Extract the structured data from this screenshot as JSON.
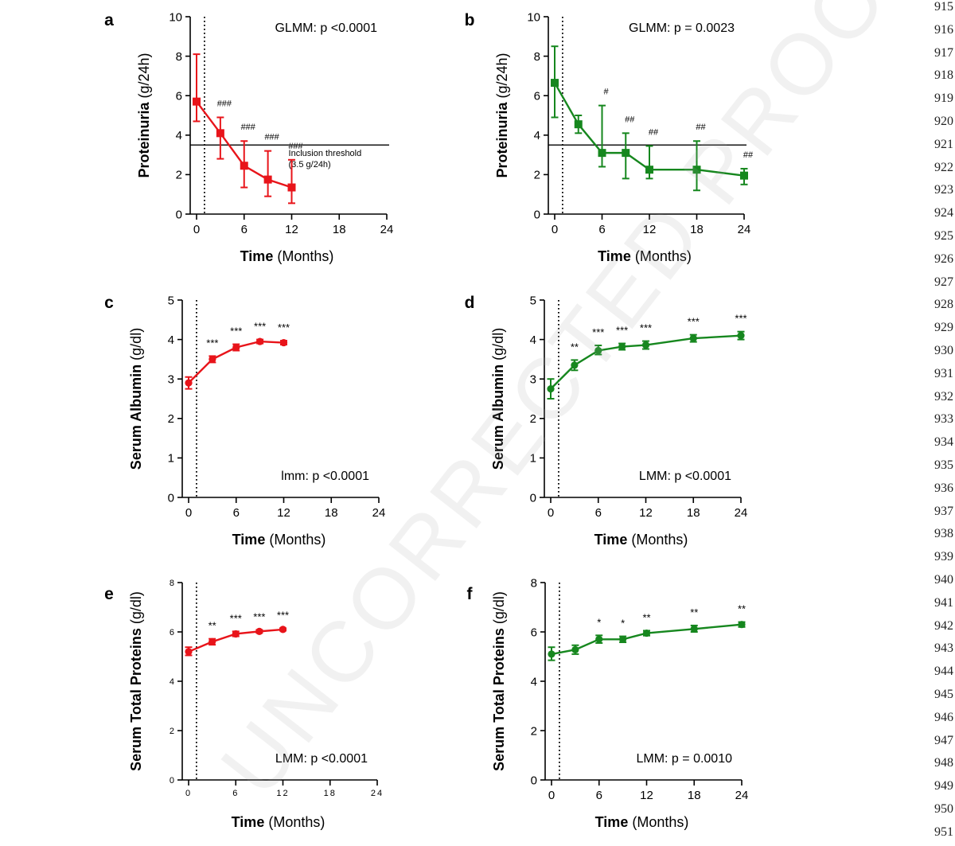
{
  "watermark": "UNCORRECTED PROOF",
  "line_numbers": [
    "915",
    "916",
    "917",
    "918",
    "919",
    "920",
    "921",
    "922",
    "923",
    "924",
    "925",
    "926",
    "927",
    "928",
    "929",
    "930",
    "931",
    "932",
    "933",
    "934",
    "935",
    "936",
    "937",
    "938",
    "939",
    "940",
    "941",
    "942",
    "943",
    "944",
    "945",
    "946",
    "947",
    "948",
    "949",
    "950",
    "951"
  ],
  "colors": {
    "red": "#e8141a",
    "green": "#16871e",
    "axis": "#000000"
  },
  "chart_data": [
    {
      "panel": "a",
      "type": "line",
      "color": "red",
      "marker": "square",
      "stat": "GLMM: p <0.0001",
      "ylabel_bold": "Proteinuria",
      "ylabel_rest": " (g/24h)",
      "xlabel_bold": "Time",
      "xlabel_rest": " (Months)",
      "xlim": [
        0,
        24
      ],
      "xticks": [
        "0",
        "6",
        "12",
        "18",
        "24"
      ],
      "ylim": [
        0,
        10
      ],
      "yticks": [
        "0",
        "2",
        "4",
        "6",
        "8",
        "10"
      ],
      "vline_x": 1,
      "hline": {
        "y": 3.5,
        "label1": "Inclusion threshold",
        "label2": "(3.5 g/24h)"
      },
      "points": [
        {
          "x": 0,
          "y": 5.7,
          "lo": 4.7,
          "hi": 8.1,
          "sig": ""
        },
        {
          "x": 3,
          "y": 4.1,
          "lo": 2.8,
          "hi": 4.9,
          "sig": "###"
        },
        {
          "x": 6,
          "y": 2.45,
          "lo": 1.35,
          "hi": 3.7,
          "sig": "###"
        },
        {
          "x": 9,
          "y": 1.75,
          "lo": 0.9,
          "hi": 3.2,
          "sig": "###"
        },
        {
          "x": 12,
          "y": 1.35,
          "lo": 0.55,
          "hi": 2.75,
          "sig": "###"
        }
      ]
    },
    {
      "panel": "b",
      "type": "line",
      "color": "green",
      "marker": "square",
      "stat": "GLMM: p = 0.0023",
      "ylabel_bold": "Proteinuria",
      "ylabel_rest": " (g/24h)",
      "xlabel_bold": "Time",
      "xlabel_rest": " (Months)",
      "xlim": [
        0,
        24
      ],
      "xticks": [
        "0",
        "6",
        "12",
        "18",
        "24"
      ],
      "ylim": [
        0,
        10
      ],
      "yticks": [
        "0",
        "2",
        "4",
        "6",
        "8",
        "10"
      ],
      "vline_x": 1,
      "hline": {
        "y": 3.5,
        "label1": "",
        "label2": ""
      },
      "points": [
        {
          "x": 0,
          "y": 6.65,
          "lo": 4.9,
          "hi": 8.5,
          "sig": ""
        },
        {
          "x": 3,
          "y": 4.55,
          "lo": 4.1,
          "hi": 5.0,
          "sig": ""
        },
        {
          "x": 6,
          "y": 3.1,
          "lo": 2.4,
          "hi": 5.5,
          "sig": "#"
        },
        {
          "x": 9,
          "y": 3.1,
          "lo": 1.8,
          "hi": 4.1,
          "sig": "##"
        },
        {
          "x": 12,
          "y": 2.25,
          "lo": 1.8,
          "hi": 3.45,
          "sig": "##"
        },
        {
          "x": 18,
          "y": 2.25,
          "lo": 1.2,
          "hi": 3.7,
          "sig": "##"
        },
        {
          "x": 24,
          "y": 1.95,
          "lo": 1.5,
          "hi": 2.3,
          "sig": "##"
        }
      ]
    },
    {
      "panel": "c",
      "type": "line",
      "color": "red",
      "marker": "circle",
      "stat": "lmm: p <0.0001",
      "ylabel_bold": "Serum Albumin",
      "ylabel_rest": " (g/dl)",
      "xlabel_bold": "Time",
      "xlabel_rest": " (Months)",
      "xlim": [
        0,
        24
      ],
      "xticks": [
        "0",
        "6",
        "12",
        "18",
        "24"
      ],
      "ylim": [
        0,
        5
      ],
      "yticks": [
        "0",
        "1",
        "2",
        "3",
        "4",
        "5"
      ],
      "vline_x": 1,
      "points": [
        {
          "x": 0,
          "y": 2.9,
          "lo": 2.75,
          "hi": 3.05,
          "sig": ""
        },
        {
          "x": 3,
          "y": 3.5,
          "lo": 3.42,
          "hi": 3.58,
          "sig": "***"
        },
        {
          "x": 6,
          "y": 3.8,
          "lo": 3.72,
          "hi": 3.88,
          "sig": "***"
        },
        {
          "x": 9,
          "y": 3.95,
          "lo": 3.9,
          "hi": 4.0,
          "sig": "***"
        },
        {
          "x": 12,
          "y": 3.92,
          "lo": 3.87,
          "hi": 3.97,
          "sig": "***"
        }
      ]
    },
    {
      "panel": "d",
      "type": "line",
      "color": "green",
      "marker": "circle",
      "stat": "LMM: p <0.0001",
      "ylabel_bold": "Serum Albumin",
      "ylabel_rest": " (g/dl)",
      "xlabel_bold": "Time",
      "xlabel_rest": " (Months)",
      "xlim": [
        0,
        24
      ],
      "xticks": [
        "0",
        "6",
        "12",
        "18",
        "24"
      ],
      "ylim": [
        0,
        5
      ],
      "yticks": [
        "0",
        "1",
        "2",
        "3",
        "4",
        "5"
      ],
      "vline_x": 1,
      "points": [
        {
          "x": 0,
          "y": 2.75,
          "lo": 2.5,
          "hi": 3.0,
          "sig": ""
        },
        {
          "x": 3,
          "y": 3.35,
          "lo": 3.22,
          "hi": 3.48,
          "sig": "**"
        },
        {
          "x": 6,
          "y": 3.72,
          "lo": 3.62,
          "hi": 3.85,
          "sig": "***"
        },
        {
          "x": 9,
          "y": 3.82,
          "lo": 3.74,
          "hi": 3.9,
          "sig": "***"
        },
        {
          "x": 12,
          "y": 3.86,
          "lo": 3.76,
          "hi": 3.96,
          "sig": "***"
        },
        {
          "x": 18,
          "y": 4.03,
          "lo": 3.94,
          "hi": 4.12,
          "sig": "***"
        },
        {
          "x": 24,
          "y": 4.1,
          "lo": 4.0,
          "hi": 4.2,
          "sig": "***"
        }
      ]
    },
    {
      "panel": "e",
      "type": "line",
      "color": "red",
      "marker": "circle",
      "stat": "LMM: p <0.0001",
      "ylabel_bold": "Serum Total Proteins",
      "ylabel_rest": " (g/dl)",
      "xlabel_bold": "Time",
      "xlabel_rest": " (Months)",
      "xlim": [
        0,
        24
      ],
      "xticks": [
        "0",
        "6",
        "12",
        "18",
        "24"
      ],
      "ylim": [
        0,
        8
      ],
      "yticks": [
        "0",
        "2",
        "4",
        "6",
        "8"
      ],
      "small_ticks": true,
      "vline_x": 1,
      "points": [
        {
          "x": 0,
          "y": 5.2,
          "lo": 5.05,
          "hi": 5.38,
          "sig": ""
        },
        {
          "x": 3,
          "y": 5.6,
          "lo": 5.48,
          "hi": 5.72,
          "sig": "**"
        },
        {
          "x": 6,
          "y": 5.92,
          "lo": 5.82,
          "hi": 6.02,
          "sig": "***"
        },
        {
          "x": 9,
          "y": 6.02,
          "lo": 5.96,
          "hi": 6.08,
          "sig": "***"
        },
        {
          "x": 12,
          "y": 6.1,
          "lo": 6.05,
          "hi": 6.15,
          "sig": "***"
        }
      ]
    },
    {
      "panel": "f",
      "type": "line",
      "color": "green",
      "marker": "circle",
      "stat": "LMM: p = 0.0010",
      "ylabel_bold": "Serum Total Proteins",
      "ylabel_rest": " (g/dl)",
      "xlabel_bold": "Time",
      "xlabel_rest": " (Months)",
      "xlim": [
        0,
        24
      ],
      "xticks": [
        "0",
        "6",
        "12",
        "18",
        "24"
      ],
      "ylim": [
        0,
        8
      ],
      "yticks": [
        "0",
        "2",
        "4",
        "6",
        "8"
      ],
      "vline_x": 1,
      "points": [
        {
          "x": 0,
          "y": 5.1,
          "lo": 4.85,
          "hi": 5.38,
          "sig": ""
        },
        {
          "x": 3,
          "y": 5.28,
          "lo": 5.1,
          "hi": 5.46,
          "sig": ""
        },
        {
          "x": 6,
          "y": 5.7,
          "lo": 5.55,
          "hi": 5.86,
          "sig": "*"
        },
        {
          "x": 9,
          "y": 5.7,
          "lo": 5.58,
          "hi": 5.82,
          "sig": "*"
        },
        {
          "x": 12,
          "y": 5.95,
          "lo": 5.85,
          "hi": 6.05,
          "sig": "**"
        },
        {
          "x": 18,
          "y": 6.12,
          "lo": 6.0,
          "hi": 6.26,
          "sig": "**"
        },
        {
          "x": 24,
          "y": 6.3,
          "lo": 6.2,
          "hi": 6.4,
          "sig": "**"
        }
      ]
    }
  ]
}
